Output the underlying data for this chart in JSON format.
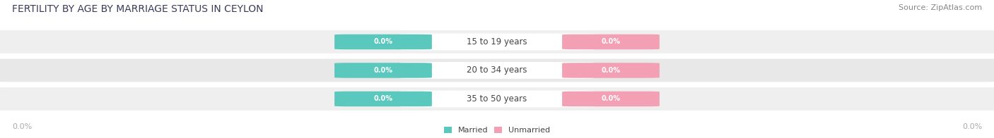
{
  "title": "FERTILITY BY AGE BY MARRIAGE STATUS IN CEYLON",
  "source": "Source: ZipAtlas.com",
  "categories": [
    "15 to 19 years",
    "20 to 34 years",
    "35 to 50 years"
  ],
  "married_values": [
    0.0,
    0.0,
    0.0
  ],
  "unmarried_values": [
    0.0,
    0.0,
    0.0
  ],
  "married_color": "#5BC8BE",
  "unmarried_color": "#F4A0B4",
  "row_bg_even": "#EFEFEF",
  "row_bg_odd": "#E8E8E8",
  "title_color": "#3A3A5C",
  "source_color": "#888888",
  "label_color": "#444444",
  "value_color": "#FFFFFF",
  "axis_label_color": "#AAAAAA",
  "title_fontsize": 10,
  "source_fontsize": 8,
  "cat_label_fontsize": 8.5,
  "value_fontsize": 7,
  "axis_fontsize": 8,
  "legend_fontsize": 8,
  "axis_label_left": "0.0%",
  "axis_label_right": "0.0%",
  "legend_married": "Married",
  "legend_unmarried": "Unmarried",
  "figsize": [
    14.06,
    1.96
  ],
  "dpi": 100
}
